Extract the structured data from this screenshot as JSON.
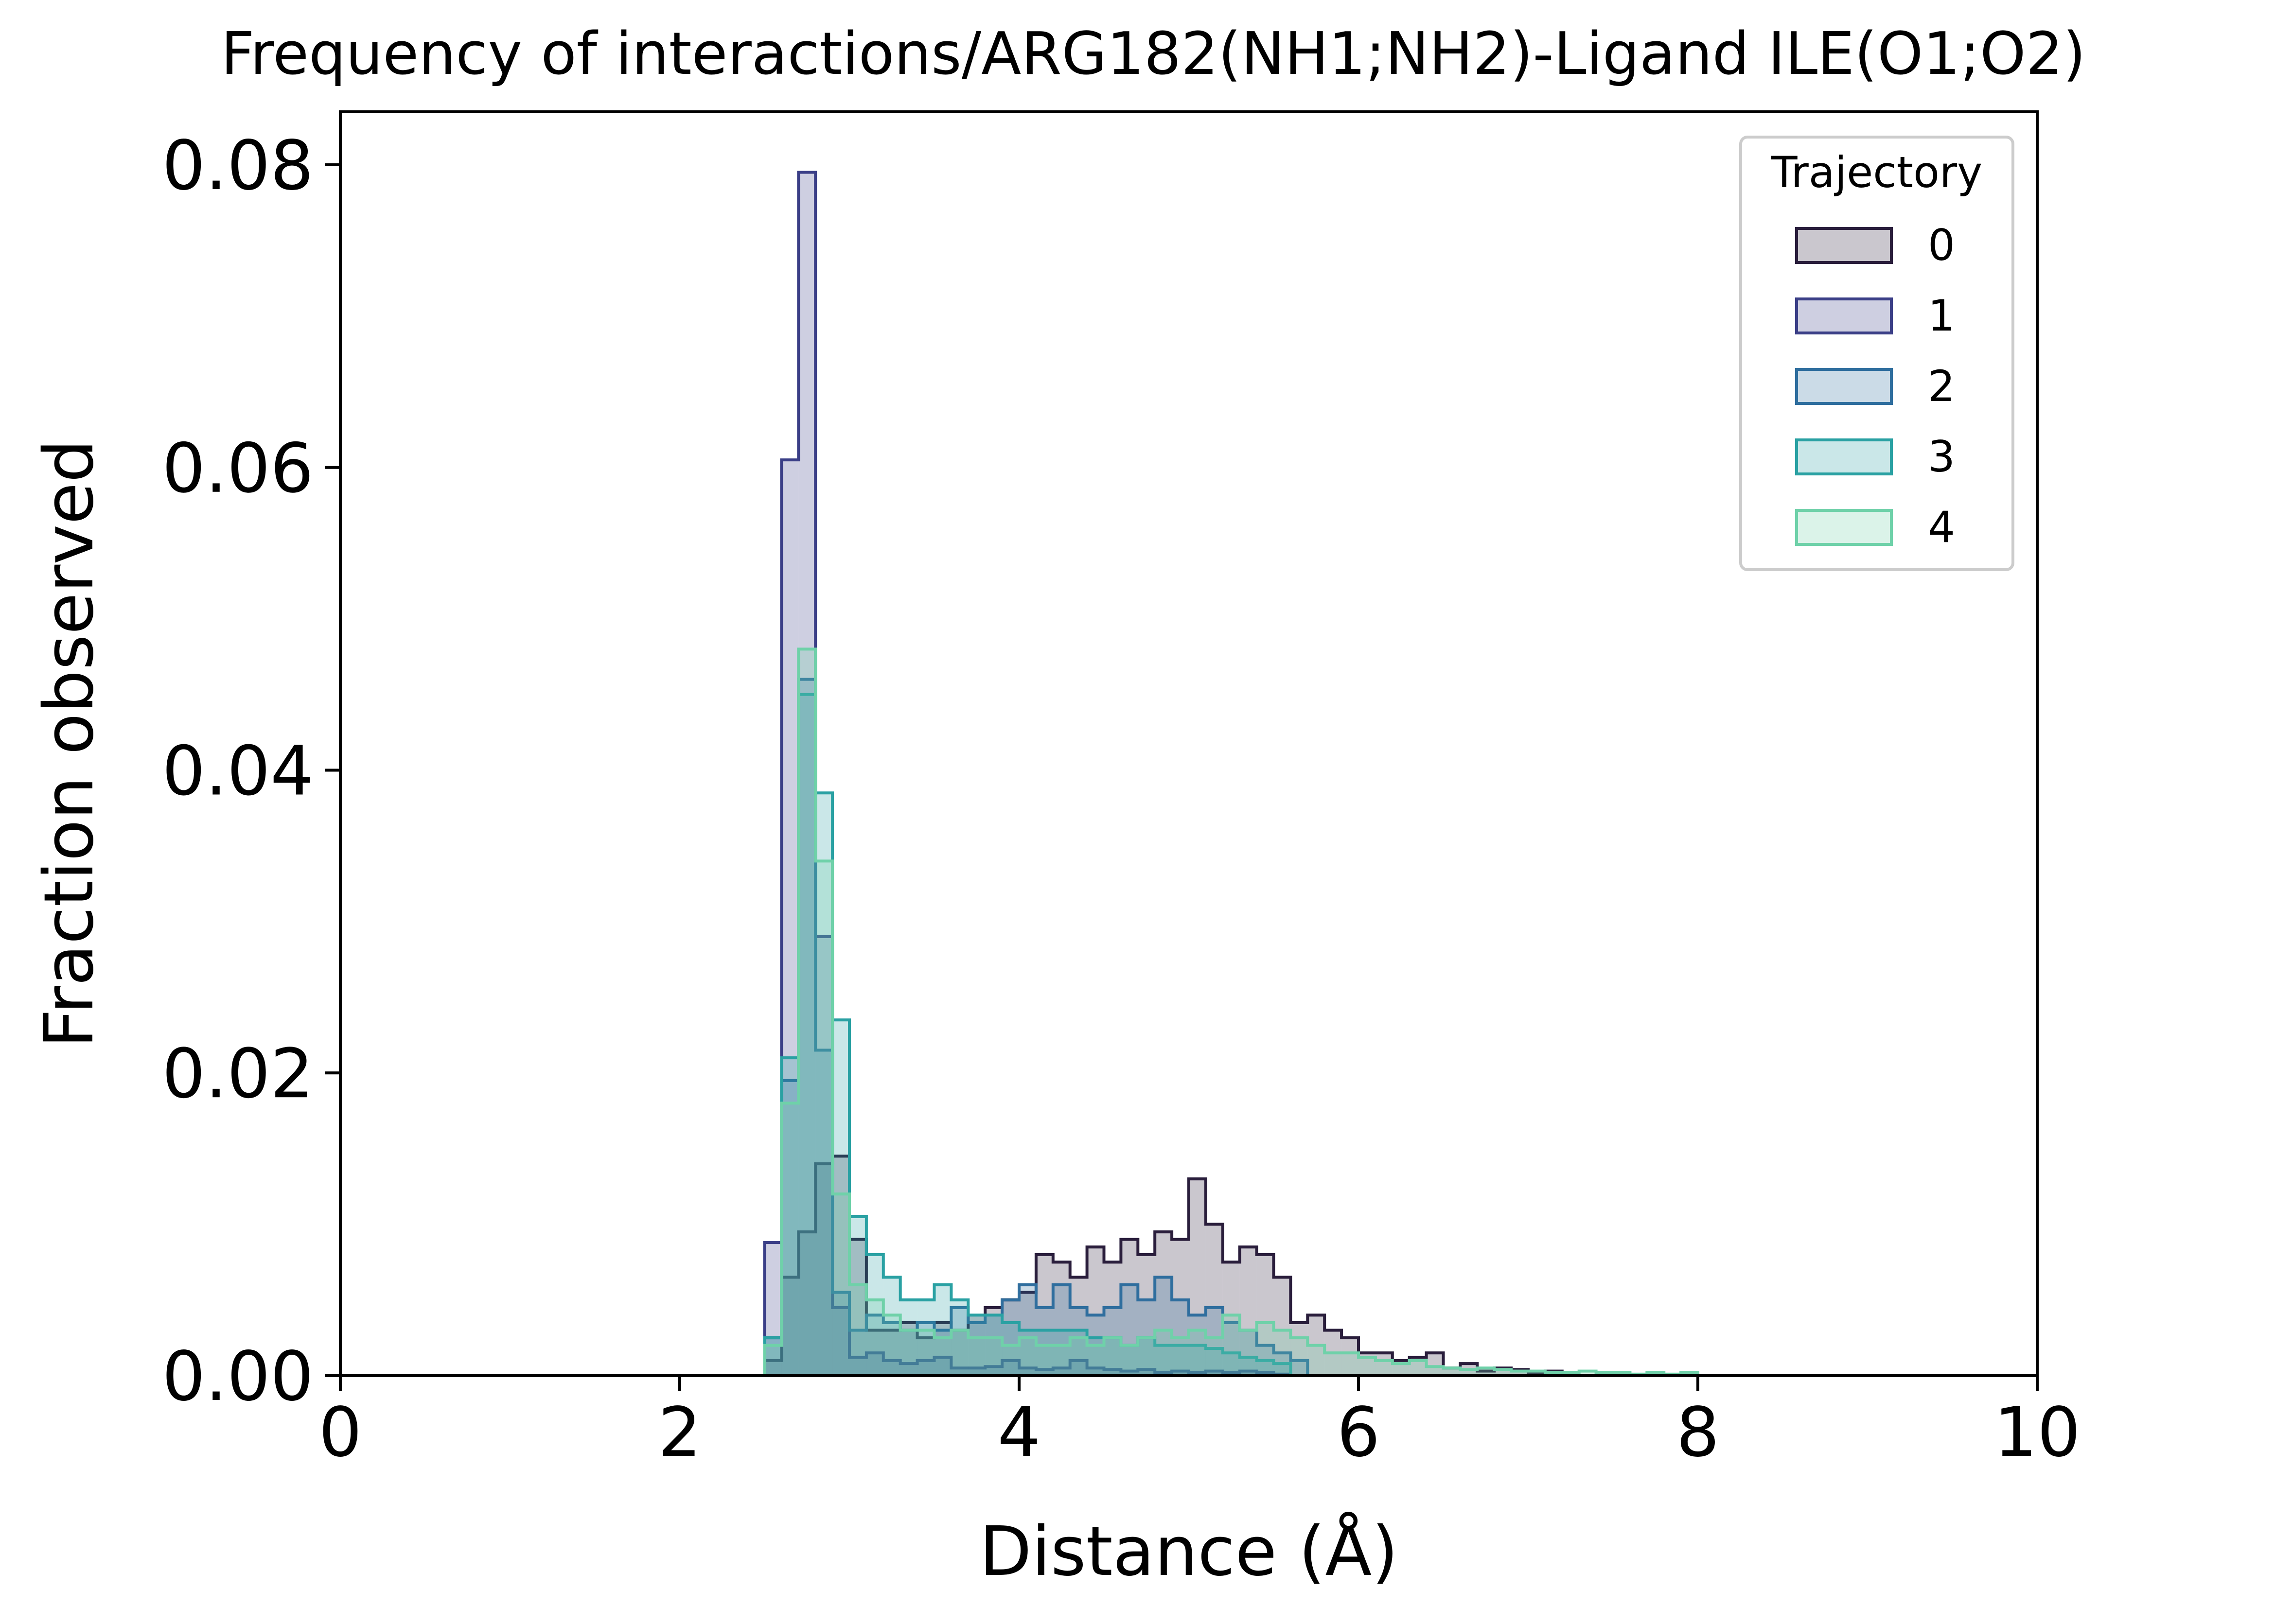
{
  "chart_data": {
    "type": "histogram",
    "title": "Frequency of interactions/ARG182(NH1;NH2)-Ligand ILE(O1;O2)",
    "xlabel": "Distance (Å)",
    "ylabel": "Fraction observed",
    "xlim": [
      0,
      10
    ],
    "ylim": [
      0,
      0.0835
    ],
    "xticks": [
      0,
      2,
      4,
      6,
      8,
      10
    ],
    "xtick_labels": [
      "0",
      "2",
      "4",
      "6",
      "8",
      "10"
    ],
    "yticks": [
      0.0,
      0.02,
      0.04,
      0.06,
      0.08
    ],
    "ytick_labels": [
      "0.00",
      "0.02",
      "0.04",
      "0.06",
      "0.08"
    ],
    "grid": false,
    "legend": {
      "title": "Trajectory",
      "placement": "top-right"
    },
    "bin_start": 2.5,
    "bin_width": 0.1,
    "series": [
      {
        "name": "0",
        "color": "#2a1e3c",
        "values": [
          0.001,
          0.0065,
          0.0095,
          0.014,
          0.0145,
          0.009,
          0.003,
          0.003,
          0.0035,
          0.0025,
          0.0035,
          0.003,
          0.004,
          0.0045,
          0.005,
          0.0055,
          0.008,
          0.0075,
          0.0065,
          0.0085,
          0.0075,
          0.009,
          0.008,
          0.0095,
          0.009,
          0.013,
          0.01,
          0.0075,
          0.0085,
          0.008,
          0.0065,
          0.0035,
          0.004,
          0.003,
          0.0025,
          0.0015,
          0.0015,
          0.001,
          0.0012,
          0.0015,
          0.0005,
          0.0008,
          0.0003,
          0.0005,
          0.0004,
          0.0002,
          0.0003
        ]
      },
      {
        "name": "1",
        "color": "#3b3f87",
        "values": [
          0.0088,
          0.0605,
          0.0795,
          0.029,
          0.0045,
          0.0012,
          0.0015,
          0.001,
          0.0008,
          0.001,
          0.0012,
          0.0005,
          0.0005,
          0.0006,
          0.001,
          0.0005,
          0.0004,
          0.0005,
          0.001,
          0.0005,
          0.0004,
          0.0003,
          0.0004,
          0.0002,
          0.0003,
          0.0002,
          0.0003,
          0.0002,
          0.0003,
          0.0002,
          0.0001
        ]
      },
      {
        "name": "2",
        "color": "#2f6e9e",
        "values": [
          0.0025,
          0.0195,
          0.046,
          0.0215,
          0.0055,
          0.003,
          0.004,
          0.0035,
          0.003,
          0.0035,
          0.003,
          0.0045,
          0.0035,
          0.004,
          0.005,
          0.006,
          0.0045,
          0.006,
          0.0045,
          0.004,
          0.0045,
          0.006,
          0.005,
          0.0065,
          0.005,
          0.004,
          0.0045,
          0.0035,
          0.003,
          0.002,
          0.0015,
          0.001
        ]
      },
      {
        "name": "3",
        "color": "#2aa1a3",
        "values": [
          0.0025,
          0.021,
          0.045,
          0.0385,
          0.0235,
          0.0105,
          0.008,
          0.0065,
          0.005,
          0.005,
          0.006,
          0.005,
          0.004,
          0.004,
          0.0035,
          0.003,
          0.003,
          0.003,
          0.003,
          0.0025,
          0.0025,
          0.002,
          0.0025,
          0.002,
          0.002,
          0.002,
          0.0018,
          0.0015,
          0.0012,
          0.001,
          0.0008
        ]
      },
      {
        "name": "4",
        "color": "#6fd1a9",
        "values": [
          0.002,
          0.018,
          0.048,
          0.034,
          0.012,
          0.006,
          0.005,
          0.004,
          0.003,
          0.003,
          0.0025,
          0.003,
          0.0025,
          0.0025,
          0.002,
          0.0025,
          0.002,
          0.002,
          0.0025,
          0.002,
          0.0025,
          0.002,
          0.0025,
          0.003,
          0.0025,
          0.003,
          0.0025,
          0.004,
          0.003,
          0.0035,
          0.003,
          0.0025,
          0.002,
          0.0015,
          0.0015,
          0.0012,
          0.001,
          0.0008,
          0.001,
          0.0006,
          0.0005,
          0.0004,
          0.0005,
          0.0004,
          0.0003,
          0.0003,
          0.0002,
          0.0002,
          0.0003,
          0.0002,
          0.0002,
          0.0001,
          0.0002,
          0.0001,
          0.0002
        ]
      }
    ]
  }
}
